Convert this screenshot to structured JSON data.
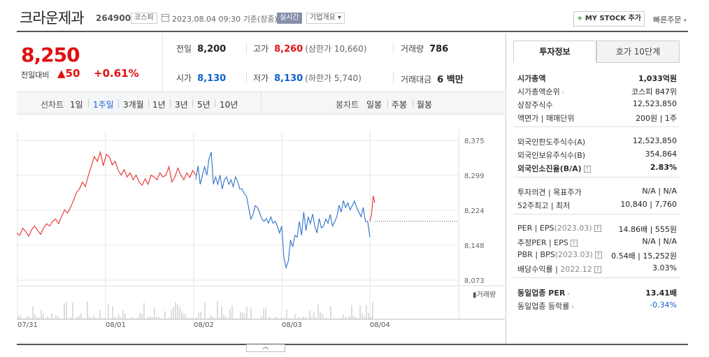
{
  "header": {
    "name": "크라운제과",
    "code": "264900",
    "market": "코스피",
    "datetime": "2023.08.04 09:30",
    "status": "기준(장중)",
    "realtime_label": "실시간",
    "company_info_label": "기업개요",
    "mystock_label": "MY STOCK 추가",
    "quick_order_label": "빠른주문"
  },
  "summary": {
    "price": "8,250",
    "change_label": "전일대비",
    "change_abs": "50",
    "change_pct": "+0.61%",
    "prev_close": {
      "label": "전일",
      "value": "8,200"
    },
    "high": {
      "label": "고가",
      "value": "8,260",
      "note": "(상한가 10,660)"
    },
    "volume": {
      "label": "거래량",
      "value": "786"
    },
    "open": {
      "label": "시가",
      "value": "8,130"
    },
    "low": {
      "label": "저가",
      "value": "8,130",
      "note": "(하한가 5,740)"
    },
    "amount": {
      "label": "거래대금",
      "value": "6 백만"
    }
  },
  "period_bar": {
    "line_chart_label": "선차트",
    "line_periods": [
      "1일",
      "1주일",
      "3개월",
      "1년",
      "3년",
      "5년",
      "10년"
    ],
    "line_active": "1주일",
    "candle_chart_label": "봉차트",
    "candle_periods": [
      "일봉",
      "주봉",
      "월봉"
    ]
  },
  "chart_data": {
    "type": "line",
    "y_ticks": [
      "8,375",
      "8,299",
      "8,224",
      "8,148",
      "8,073"
    ],
    "ylim": [
      8073,
      8375
    ],
    "x_ticks": [
      "07/31",
      "08/01",
      "08/02",
      "08/03",
      "08/04"
    ],
    "prev_close": 8200,
    "volume_label": "거래량",
    "colors": {
      "up": "#e83030",
      "down": "#2f70c8",
      "grid": "#e6e6e6"
    },
    "series_up_1": [
      8175,
      8170,
      8185,
      8178,
      8168,
      8182,
      8190,
      8180,
      8172,
      8186,
      8195,
      8190,
      8200,
      8205,
      8195,
      8210,
      8225,
      8218,
      8230,
      8245,
      8262,
      8270,
      8285,
      8275,
      8300,
      8320,
      8340,
      8330,
      8350,
      8320,
      8345,
      8340,
      8322,
      8330,
      8310,
      8300,
      8312,
      8296,
      8305,
      8290,
      8300,
      8285,
      8278,
      8292,
      8280,
      8300,
      8296,
      8290,
      8305,
      8296,
      8300,
      8318,
      8285,
      8296,
      8315,
      8300,
      8290,
      8305,
      8295,
      8310,
      8300
    ],
    "series_down": [
      8290,
      8320,
      8280,
      8300,
      8318,
      8300,
      8335,
      8350,
      8280,
      8296,
      8280,
      8300,
      8270,
      8290,
      8296,
      8280,
      8290,
      8275,
      8296,
      8286,
      8270,
      8270,
      8260,
      8255,
      8230,
      8205,
      8215,
      8234,
      8230,
      8218,
      8205,
      8200,
      8206,
      8196,
      8210,
      8196,
      8200,
      8190,
      8175,
      8190,
      8120,
      8100,
      8115,
      8160,
      8145,
      8170,
      8166,
      8200,
      8170,
      8220,
      8180,
      8210,
      8195,
      8216,
      8190,
      8175,
      8206,
      8186,
      8190,
      8205,
      8196,
      8215,
      8190,
      8199,
      8210,
      8235,
      8220,
      8245,
      8230,
      8240,
      8225,
      8234,
      8244,
      8230,
      8220,
      8210,
      8230,
      8200,
      8200,
      8166
    ],
    "series_up_2": [
      8200,
      8215,
      8255,
      8240
    ]
  },
  "right_panel": {
    "tabs": [
      "투자정보",
      "호가 10단계"
    ],
    "group1": [
      {
        "label": "시가총액",
        "value": "1,033억원",
        "bold": true
      },
      {
        "label": "시가총액순위",
        "value": "코스피 847위",
        "arrow": true
      },
      {
        "label": "상장주식수",
        "value": "12,523,850"
      },
      {
        "label": "액면가 | 매매단위",
        "value": "200원 | 1주"
      }
    ],
    "group2": [
      {
        "label": "외국인한도주식수(A)",
        "value": "12,523,850"
      },
      {
        "label": "외국인보유주식수(B)",
        "value": "354,864"
      },
      {
        "label": "외국인소진율(B/A)",
        "value": "2.83%",
        "bold": true,
        "help": true
      }
    ],
    "group3": [
      {
        "label": "투자의견 | 목표주가",
        "value": "N/A | N/A"
      },
      {
        "label": "52주최고 | 최저",
        "value": "10,840 | 7,760"
      }
    ],
    "group4": [
      {
        "label": "PER | EPS",
        "sub": "(2023.03)",
        "value": "14.86배 | 555원",
        "help": true
      },
      {
        "label": "추정PER | EPS",
        "sub": "",
        "value": "N/A | N/A",
        "help": true
      },
      {
        "label": "PBR | BPS",
        "sub": "(2023.03)",
        "value": "0.54배 | 15,252원",
        "help": true
      },
      {
        "label": "배당수익률 | ",
        "sub": "2022.12",
        "value": "3.03%",
        "help": true
      }
    ],
    "group5": [
      {
        "label": "동일업종 PER",
        "value": "13.41배",
        "bold": true,
        "arrow": true
      },
      {
        "label": "동일업종 등락률",
        "value": "-0.34%",
        "arrow": true,
        "blue": true
      }
    ]
  }
}
